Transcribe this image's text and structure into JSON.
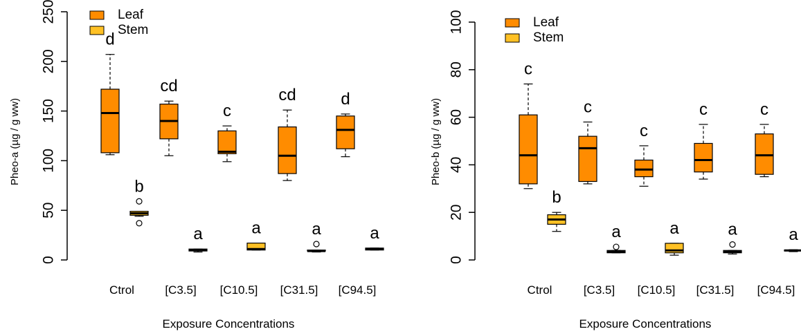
{
  "chart_data": [
    {
      "type": "boxplot",
      "ylabel": "Pheo-a (µg / g ww)",
      "xlabel": "Exposure Concentrations",
      "ylim": [
        0,
        250
      ],
      "yticks": [
        0,
        50,
        100,
        150,
        200,
        250
      ],
      "categories": [
        "Ctrol",
        "[C3.5]",
        "[C10.5]",
        "[C31.5]",
        "[C94.5]"
      ],
      "legend": [
        {
          "name": "Leaf",
          "color": "#FF8C00"
        },
        {
          "name": "Stem",
          "color": "#FFC125"
        }
      ],
      "legend_position": "top-left",
      "series": [
        {
          "name": "Leaf",
          "color": "#FF8C00",
          "boxes": [
            {
              "category": "Ctrol",
              "min": 106,
              "q1": 108,
              "median": 148,
              "q3": 172,
              "max": 207,
              "outliers": [],
              "letter": "d"
            },
            {
              "category": "[C3.5]",
              "min": 105,
              "q1": 122,
              "median": 140,
              "q3": 157,
              "max": 160,
              "outliers": [],
              "letter": "cd"
            },
            {
              "category": "[C10.5]",
              "min": 99,
              "q1": 107,
              "median": 109,
              "q3": 130,
              "max": 135,
              "outliers": [],
              "letter": "c"
            },
            {
              "category": "[C31.5]",
              "min": 80,
              "q1": 87,
              "median": 105,
              "q3": 134,
              "max": 151,
              "outliers": [],
              "letter": "cd"
            },
            {
              "category": "[C94.5]",
              "min": 104,
              "q1": 112,
              "median": 131,
              "q3": 145,
              "max": 147,
              "outliers": [],
              "letter": "d"
            }
          ]
        },
        {
          "name": "Stem",
          "color": "#FFC125",
          "boxes": [
            {
              "category": "Ctrol",
              "min": 44,
              "q1": 45,
              "median": 47,
              "q3": 49,
              "max": 49,
              "outliers": [
                37,
                59
              ],
              "letter": "b"
            },
            {
              "category": "[C3.5]",
              "min": 8,
              "q1": 9,
              "median": 10,
              "q3": 11,
              "max": 11,
              "outliers": [],
              "letter": "a"
            },
            {
              "category": "[C10.5]",
              "min": 10,
              "q1": 10,
              "median": 11,
              "q3": 17,
              "max": 17,
              "outliers": [],
              "letter": "a"
            },
            {
              "category": "[C31.5]",
              "min": 8,
              "q1": 9,
              "median": 9,
              "q3": 10,
              "max": 10,
              "outliers": [
                16
              ],
              "letter": "a"
            },
            {
              "category": "[C94.5]",
              "min": 10,
              "q1": 10,
              "median": 11,
              "q3": 12,
              "max": 12,
              "outliers": [],
              "letter": "a"
            }
          ]
        }
      ]
    },
    {
      "type": "boxplot",
      "ylabel": "Pheo-b (µg / g ww)",
      "xlabel": "Exposure Concentrations",
      "ylim": [
        0,
        100
      ],
      "yticks": [
        0,
        20,
        40,
        60,
        80,
        100
      ],
      "categories": [
        "Ctrol",
        "[C3.5]",
        "[C10.5]",
        "[C31.5]",
        "[C94.5]"
      ],
      "legend": [
        {
          "name": "Leaf",
          "color": "#FF8C00"
        },
        {
          "name": "Stem",
          "color": "#FFC125"
        }
      ],
      "legend_position": "top-left",
      "series": [
        {
          "name": "Leaf",
          "color": "#FF8C00",
          "boxes": [
            {
              "category": "Ctrol",
              "min": 30,
              "q1": 32,
              "median": 44,
              "q3": 61,
              "max": 74,
              "outliers": [],
              "letter": "c"
            },
            {
              "category": "[C3.5]",
              "min": 32,
              "q1": 33,
              "median": 47,
              "q3": 52,
              "max": 58,
              "outliers": [],
              "letter": "c"
            },
            {
              "category": "[C10.5]",
              "min": 31,
              "q1": 35,
              "median": 38,
              "q3": 42,
              "max": 48,
              "outliers": [],
              "letter": "c"
            },
            {
              "category": "[C31.5]",
              "min": 34,
              "q1": 37,
              "median": 42,
              "q3": 49,
              "max": 57,
              "outliers": [],
              "letter": "c"
            },
            {
              "category": "[C94.5]",
              "min": 35,
              "q1": 36,
              "median": 44,
              "q3": 53,
              "max": 57,
              "outliers": [],
              "letter": "c"
            }
          ]
        },
        {
          "name": "Stem",
          "color": "#FFC125",
          "boxes": [
            {
              "category": "Ctrol",
              "min": 12,
              "q1": 15,
              "median": 17,
              "q3": 19,
              "max": 20,
              "outliers": [],
              "letter": "b"
            },
            {
              "category": "[C3.5]",
              "min": 3,
              "q1": 3,
              "median": 3.5,
              "q3": 4,
              "max": 4,
              "outliers": [
                5.5
              ],
              "letter": "a"
            },
            {
              "category": "[C10.5]",
              "min": 2,
              "q1": 3,
              "median": 4,
              "q3": 7,
              "max": 7,
              "outliers": [],
              "letter": "a"
            },
            {
              "category": "[C31.5]",
              "min": 2.5,
              "q1": 3,
              "median": 3.5,
              "q3": 4,
              "max": 4,
              "outliers": [
                6.5
              ],
              "letter": "a"
            },
            {
              "category": "[C94.5]",
              "min": 3.5,
              "q1": 3.8,
              "median": 4,
              "q3": 4.2,
              "max": 4.3,
              "outliers": [],
              "letter": "a"
            }
          ]
        }
      ]
    }
  ]
}
